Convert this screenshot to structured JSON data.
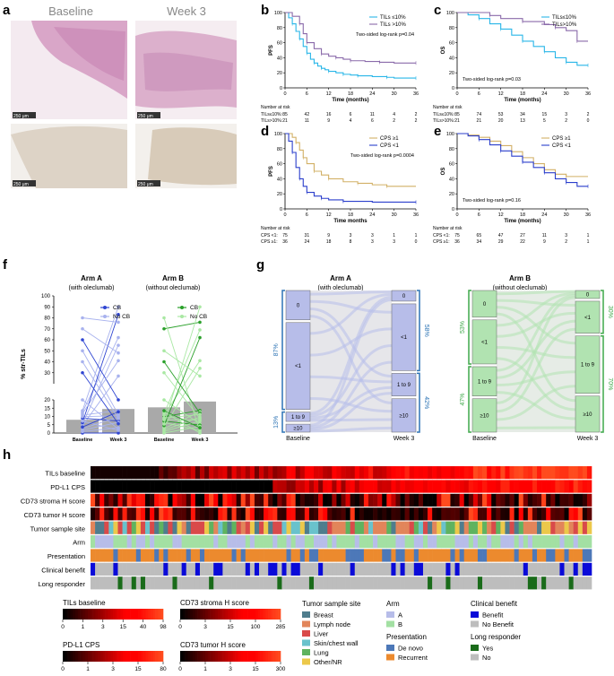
{
  "panel_labels": {
    "a": "a",
    "b": "b",
    "c": "c",
    "d": "d",
    "e": "e",
    "f": "f",
    "g": "g",
    "h": "h"
  },
  "panel_a": {
    "col_left": "Baseline",
    "col_right": "Week 3",
    "scale_bar": "250 μm",
    "colors": {
      "he": "#d9a6c8",
      "ihc": "#ddd3c6"
    }
  },
  "km_colors": {
    "low": "#29b6e8",
    "high": "#8a6aaa",
    "cps_high": "#d2b066",
    "cps_low": "#2b3fcc"
  },
  "chart_data": [
    {
      "id": "b",
      "type": "line",
      "ylabel": "PFS",
      "xlabel": "Time (months)",
      "xticks": [
        "0",
        "6",
        "12",
        "18",
        "24",
        "30",
        "36"
      ],
      "yticks": [
        "0",
        "20",
        "40",
        "60",
        "80",
        "100"
      ],
      "xlim": [
        0,
        36
      ],
      "ylim": [
        0,
        100
      ],
      "legend": [
        "TILs ≤10%",
        "TILs >10%"
      ],
      "annotation": "Two-sided log-rank p=0.04",
      "series": [
        {
          "name": "TILs ≤10%",
          "x": [
            0,
            1,
            2,
            3,
            4,
            5,
            6,
            7,
            8,
            9,
            10,
            11,
            12,
            14,
            16,
            18,
            20,
            24,
            28,
            30,
            36
          ],
          "y": [
            100,
            93,
            85,
            75,
            65,
            55,
            46,
            38,
            33,
            29,
            26,
            24,
            22,
            20,
            18,
            17,
            16,
            15,
            14,
            13,
            13
          ]
        },
        {
          "name": "TILs >10%",
          "x": [
            0,
            2,
            4,
            5,
            6,
            8,
            10,
            12,
            14,
            16,
            18,
            22,
            26,
            30,
            36
          ],
          "y": [
            100,
            95,
            85,
            72,
            60,
            52,
            45,
            42,
            40,
            38,
            36,
            35,
            34,
            33,
            33
          ]
        }
      ],
      "risk_title": "Number at risk",
      "risk_rows": [
        {
          "label": "TILs≤10%:",
          "values": [
            "85",
            "42",
            "16",
            "6",
            "11",
            "4",
            "2"
          ]
        },
        {
          "label": "TILs>10%:",
          "values": [
            "21",
            "11",
            "9",
            "4",
            "6",
            "2",
            "2"
          ]
        }
      ]
    },
    {
      "id": "c",
      "type": "line",
      "ylabel": "OS",
      "xlabel": "Time (months)",
      "xticks": [
        "0",
        "6",
        "12",
        "18",
        "24",
        "30",
        "36"
      ],
      "yticks": [
        "0",
        "20",
        "40",
        "60",
        "80",
        "100"
      ],
      "xlim": [
        0,
        36
      ],
      "ylim": [
        0,
        100
      ],
      "legend": [
        "TILs≤10%",
        "TILs>10%"
      ],
      "annotation": "Two-sided log-rank p=0.03",
      "series": [
        {
          "name": "TILs≤10%",
          "x": [
            0,
            3,
            6,
            9,
            12,
            15,
            18,
            21,
            24,
            27,
            30,
            33,
            36
          ],
          "y": [
            100,
            97,
            92,
            85,
            78,
            70,
            62,
            55,
            48,
            40,
            34,
            30,
            30
          ]
        },
        {
          "name": "TILs>10%",
          "x": [
            0,
            6,
            9,
            12,
            18,
            24,
            27,
            30,
            33,
            36
          ],
          "y": [
            100,
            100,
            96,
            92,
            88,
            84,
            80,
            76,
            62,
            62
          ]
        }
      ],
      "risk_title": "Number at risk",
      "risk_rows": [
        {
          "label": "TILs≤10%:",
          "values": [
            "85",
            "74",
            "53",
            "34",
            "15",
            "3",
            "2"
          ]
        },
        {
          "label": "TILs>10%:",
          "values": [
            "21",
            "21",
            "20",
            "13",
            "5",
            "2",
            "0"
          ]
        }
      ]
    },
    {
      "id": "d",
      "type": "line",
      "ylabel": "PFS",
      "xlabel": "Time months",
      "xticks": [
        "0",
        "6",
        "12",
        "18",
        "24",
        "30",
        "36"
      ],
      "yticks": [
        "0",
        "20",
        "40",
        "60",
        "80",
        "100"
      ],
      "xlim": [
        0,
        36
      ],
      "ylim": [
        0,
        100
      ],
      "legend": [
        "CPS ≥1",
        "CPS <1"
      ],
      "annotation": "Two-sided log-rank p=0.0004",
      "series": [
        {
          "name": "CPS ≥1",
          "x": [
            0,
            2,
            3,
            4,
            5,
            6,
            8,
            10,
            12,
            16,
            20,
            24,
            28,
            36
          ],
          "y": [
            100,
            95,
            88,
            78,
            68,
            60,
            50,
            45,
            40,
            36,
            34,
            32,
            30,
            30
          ]
        },
        {
          "name": "CPS <1",
          "x": [
            0,
            1,
            2,
            3,
            4,
            5,
            6,
            8,
            10,
            12,
            16,
            24,
            36
          ],
          "y": [
            100,
            90,
            75,
            55,
            40,
            30,
            22,
            17,
            14,
            12,
            10,
            9,
            9
          ]
        }
      ],
      "risk_title": "Number at risk",
      "risk_rows": [
        {
          "label": "CPS <1:",
          "values": [
            "75",
            "31",
            "9",
            "3",
            "3",
            "1",
            "1"
          ]
        },
        {
          "label": "CPS ≥1:",
          "values": [
            "36",
            "24",
            "18",
            "8",
            "3",
            "3",
            "0"
          ]
        }
      ]
    },
    {
      "id": "e",
      "type": "line",
      "ylabel": "OS",
      "xlabel": "Time (months)",
      "xticks": [
        "0",
        "6",
        "12",
        "18",
        "24",
        "30",
        "36"
      ],
      "yticks": [
        "0",
        "20",
        "40",
        "60",
        "80",
        "100"
      ],
      "xlim": [
        0,
        36
      ],
      "ylim": [
        0,
        100
      ],
      "legend": [
        "CPS ≥1",
        "CPS <1"
      ],
      "annotation": "Two-sided log-rank p=0.16",
      "series": [
        {
          "name": "CPS ≥1",
          "x": [
            0,
            3,
            6,
            9,
            12,
            15,
            18,
            21,
            24,
            27,
            30,
            36
          ],
          "y": [
            100,
            98,
            95,
            90,
            84,
            76,
            68,
            60,
            52,
            46,
            43,
            43
          ]
        },
        {
          "name": "CPS <1",
          "x": [
            0,
            3,
            6,
            9,
            12,
            15,
            18,
            21,
            24,
            27,
            30,
            33,
            36
          ],
          "y": [
            100,
            97,
            92,
            85,
            77,
            70,
            62,
            55,
            48,
            40,
            35,
            30,
            30
          ]
        }
      ],
      "risk_title": "Number at risk",
      "risk_rows": [
        {
          "label": "CPS <1:",
          "values": [
            "75",
            "65",
            "47",
            "27",
            "11",
            "3",
            "1"
          ]
        },
        {
          "label": "CPS ≥1:",
          "values": [
            "36",
            "34",
            "29",
            "22",
            "9",
            "2",
            "1"
          ]
        }
      ]
    },
    {
      "id": "f",
      "type": "bar",
      "ylabel": "% str-TILs",
      "categories": [
        "Baseline",
        "Week 3"
      ],
      "yticks": [
        "0",
        "5",
        "10",
        "15",
        "20",
        "30",
        "40",
        "50",
        "60",
        "70",
        "80",
        "90",
        "100"
      ],
      "arms": [
        {
          "title": "Arm A",
          "subtitle": "(with oleclumab)",
          "bar_values": [
            8,
            14.5
          ],
          "legend": [
            "CB",
            "No CB"
          ],
          "colors": [
            "#2f45d2",
            "#a8b2ee"
          ]
        },
        {
          "title": "Arm B",
          "subtitle": "(without oleclumab)",
          "bar_values": [
            15.5,
            19
          ],
          "legend": [
            "CB",
            "No CB"
          ],
          "colors": [
            "#2aa02a",
            "#a9e8a3"
          ]
        }
      ]
    },
    {
      "id": "g",
      "type": "sankey",
      "arms": [
        {
          "title": "Arm A",
          "subtitle": "(with oleclumab)",
          "x_labels": [
            "Baseline",
            "Week 3"
          ],
          "categories": [
            "0",
            "<1",
            "1 to 9",
            "≥10"
          ],
          "baseline_fraction": [
            0.22,
            0.65,
            0.07,
            0.06
          ],
          "week3_fraction": [
            0.08,
            0.5,
            0.17,
            0.25
          ],
          "left_brackets": [
            "87%",
            "13%"
          ],
          "right_brackets": [
            "58%",
            "42%"
          ],
          "color": "#b7bde9",
          "bracket_color": "#2d74b5"
        },
        {
          "title": "Arm B",
          "subtitle": "(without oleclumab)",
          "x_labels": [
            "Baseline",
            "Week 3"
          ],
          "categories": [
            "0",
            "<1",
            "1 to 9",
            "≥10"
          ],
          "baseline_fraction": [
            0.2,
            0.33,
            0.22,
            0.25
          ],
          "week3_fraction": [
            0.06,
            0.24,
            0.43,
            0.27
          ],
          "left_brackets": [
            "53%",
            "47%"
          ],
          "right_brackets": [
            "30%",
            "70%"
          ],
          "color": "#b1e3b1",
          "bracket_color": "#3fa84a"
        }
      ]
    },
    {
      "id": "h",
      "type": "heatmap",
      "rows": [
        "TILs baseline",
        "PD-L1 CPS",
        "CD73 stroma H score",
        "CD73 tumor H score",
        "Tumor sample site",
        "Arm",
        "Presentation",
        "Clinical benefit",
        "Long responder"
      ],
      "n_columns": 110
    }
  ],
  "legend_h": {
    "scales": [
      {
        "title": "TILs baseline",
        "ticks": [
          "0",
          "1",
          "3",
          "15",
          "40",
          "98"
        ]
      },
      {
        "title": "PD-L1 CPS",
        "ticks": [
          "0",
          "1",
          "3",
          "15",
          "80"
        ]
      },
      {
        "title": "CD73 stroma H score",
        "ticks": [
          "0",
          "3",
          "15",
          "100",
          "285"
        ]
      },
      {
        "title": "CD73 tumor H score",
        "ticks": [
          "0",
          "1",
          "3",
          "15",
          "300"
        ]
      }
    ],
    "tumor_site": {
      "title": "Tumor sample site",
      "items": [
        {
          "label": "Breast",
          "color": "#4f7d8d"
        },
        {
          "label": "Lymph node",
          "color": "#e2855a"
        },
        {
          "label": "Liver",
          "color": "#d94a4a"
        },
        {
          "label": "Skin/chest wall",
          "color": "#69c2cc"
        },
        {
          "label": "Lung",
          "color": "#5fb35f"
        },
        {
          "label": "Other/NR",
          "color": "#ecc84a"
        }
      ]
    },
    "arm": {
      "title": "Arm",
      "items": [
        {
          "label": "A",
          "color": "#b7bde9"
        },
        {
          "label": "B",
          "color": "#a3e0a3"
        }
      ]
    },
    "presentation": {
      "title": "Presentation",
      "items": [
        {
          "label": "De novo",
          "color": "#4d78b8"
        },
        {
          "label": "Recurrent",
          "color": "#ec8a2e"
        }
      ]
    },
    "clinical_benefit": {
      "title": "Clinical benefit",
      "items": [
        {
          "label": "Benefit",
          "color": "#0a0ad8"
        },
        {
          "label": "No Benefit",
          "color": "#bdbdbd"
        }
      ]
    },
    "long_responder": {
      "title": "Long responder",
      "items": [
        {
          "label": "Yes",
          "color": "#1a6b1a"
        },
        {
          "label": "No",
          "color": "#bdbdbd"
        }
      ]
    }
  }
}
